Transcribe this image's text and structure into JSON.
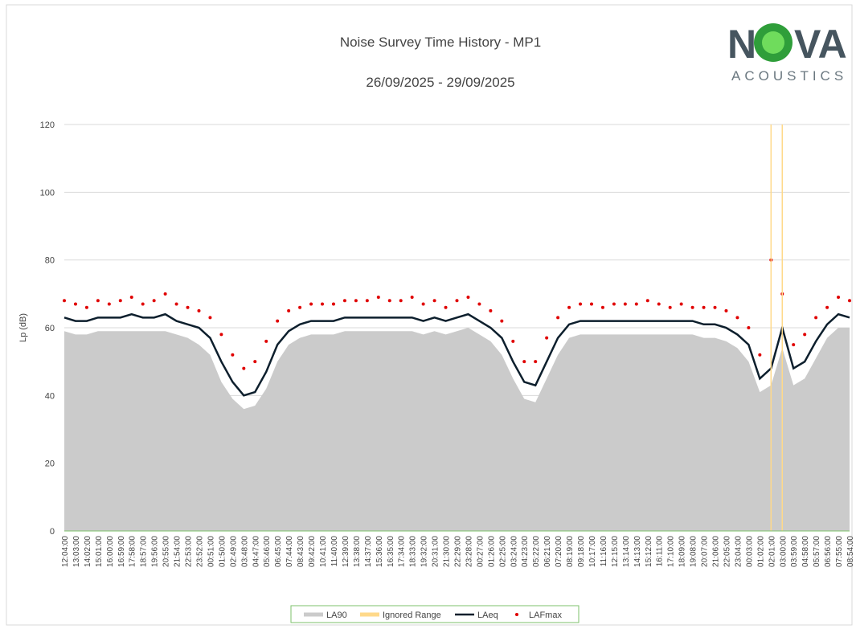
{
  "chart_data": {
    "type": "line",
    "title": "Noise Survey Time History - MP1",
    "subtitle": "26/09/2025 - 29/09/2025",
    "y_label": "Lp (dB)",
    "logo": {
      "left": "N",
      "right": "VA",
      "sub": "ACOUSTICS"
    },
    "categories": [
      "12:04:00",
      "13:03:00",
      "14:02:00",
      "15:01:00",
      "16:00:00",
      "16:59:00",
      "17:58:00",
      "18:57:00",
      "19:56:00",
      "20:55:00",
      "21:54:00",
      "22:53:00",
      "23:52:00",
      "00:51:00",
      "01:50:00",
      "02:49:00",
      "03:48:00",
      "04:47:00",
      "05:46:00",
      "06:45:00",
      "07:44:00",
      "08:43:00",
      "09:42:00",
      "10:41:00",
      "11:40:00",
      "12:39:00",
      "13:38:00",
      "14:37:00",
      "15:36:00",
      "16:35:00",
      "17:34:00",
      "18:33:00",
      "19:32:00",
      "20:31:00",
      "21:30:00",
      "22:29:00",
      "23:28:00",
      "00:27:00",
      "01:26:00",
      "02:25:00",
      "03:24:00",
      "04:23:00",
      "05:22:00",
      "06:21:00",
      "07:20:00",
      "08:19:00",
      "09:18:00",
      "10:17:00",
      "11:16:00",
      "12:15:00",
      "13:14:00",
      "14:13:00",
      "15:12:00",
      "16:11:00",
      "17:10:00",
      "18:09:00",
      "19:08:00",
      "20:07:00",
      "21:06:00",
      "22:05:00",
      "23:04:00",
      "00:03:00",
      "01:02:00",
      "02:01:00",
      "03:00:00",
      "03:59:00",
      "04:58:00",
      "05:57:00",
      "06:56:00",
      "07:55:00",
      "08:54:00"
    ],
    "series": [
      {
        "name": "LA90",
        "kind": "area",
        "color": "#cbcbcb",
        "values": [
          59,
          58,
          58,
          59,
          59,
          59,
          59,
          59,
          59,
          59,
          58,
          57,
          55,
          52,
          44,
          39,
          36,
          37,
          42,
          50,
          55,
          57,
          58,
          58,
          58,
          59,
          59,
          59,
          59,
          59,
          59,
          59,
          58,
          59,
          58,
          59,
          60,
          58,
          56,
          52,
          45,
          39,
          38,
          45,
          52,
          57,
          58,
          58,
          58,
          58,
          58,
          58,
          58,
          58,
          58,
          58,
          58,
          57,
          57,
          56,
          54,
          50,
          41,
          43,
          54,
          43,
          45,
          51,
          57,
          60,
          60
        ]
      },
      {
        "name": "LAeq",
        "kind": "line",
        "color": "#0d1f2d",
        "values": [
          63,
          62,
          62,
          63,
          63,
          63,
          64,
          63,
          63,
          64,
          62,
          61,
          60,
          57,
          50,
          44,
          40,
          41,
          47,
          55,
          59,
          61,
          62,
          62,
          62,
          63,
          63,
          63,
          63,
          63,
          63,
          63,
          62,
          63,
          62,
          63,
          64,
          62,
          60,
          57,
          50,
          44,
          43,
          50,
          57,
          61,
          62,
          62,
          62,
          62,
          62,
          62,
          62,
          62,
          62,
          62,
          62,
          61,
          61,
          60,
          58,
          55,
          45,
          48,
          60,
          48,
          50,
          56,
          61,
          64,
          63
        ]
      },
      {
        "name": "LAFmax",
        "kind": "dots",
        "color": "#e00000",
        "values": [
          68,
          67,
          66,
          68,
          67,
          68,
          69,
          67,
          68,
          70,
          67,
          66,
          65,
          63,
          58,
          52,
          48,
          50,
          56,
          62,
          65,
          66,
          67,
          67,
          67,
          68,
          68,
          68,
          69,
          68,
          68,
          69,
          67,
          68,
          66,
          68,
          69,
          67,
          65,
          62,
          56,
          50,
          50,
          57,
          63,
          66,
          67,
          67,
          66,
          67,
          67,
          67,
          68,
          67,
          66,
          67,
          66,
          66,
          66,
          65,
          63,
          60,
          52,
          80,
          70,
          55,
          58,
          63,
          66,
          69,
          68
        ]
      }
    ],
    "ignored_range": {
      "name": "Ignored Range",
      "color": "#ffd98a",
      "from": "02:01:00",
      "to": "03:00:00"
    },
    "ylim": [
      0,
      120
    ],
    "yticks": [
      0,
      20,
      40,
      60,
      80,
      100,
      120
    ],
    "grid": true
  }
}
